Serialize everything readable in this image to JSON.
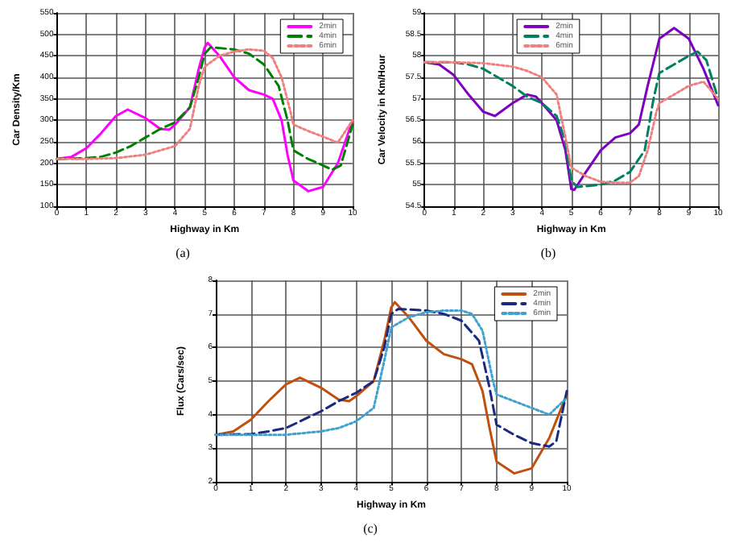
{
  "chart_data": [
    {
      "type": "line",
      "xlabel": "Highway in Km",
      "ylabel": "Car Density/Km",
      "annotations": [
        "(a)"
      ],
      "xlim": [
        0,
        10
      ],
      "xticks": [
        0,
        1,
        2,
        3,
        4,
        5,
        6,
        7,
        8,
        9,
        10
      ],
      "ylim": [
        100,
        550
      ],
      "yticks": [
        100,
        150,
        200,
        250,
        300,
        350,
        400,
        450,
        500,
        550
      ],
      "grid": true,
      "legend": "top right",
      "series": [
        {
          "name": "2min",
          "color": "#ff00ff",
          "line_style": "solid",
          "x": [
            0,
            0.5,
            1,
            1.5,
            2,
            2.4,
            3,
            3.5,
            3.8,
            4,
            4.5,
            4.8,
            5,
            5.1,
            5.5,
            6,
            6.5,
            7,
            7.3,
            7.6,
            7.8,
            8,
            8.5,
            9,
            9.5,
            10
          ],
          "values": [
            210,
            215,
            235,
            270,
            310,
            325,
            305,
            280,
            278,
            290,
            330,
            420,
            470,
            480,
            450,
            400,
            370,
            360,
            350,
            300,
            220,
            160,
            135,
            145,
            200,
            300
          ]
        },
        {
          "name": "4min",
          "color": "#008000",
          "line_style": "dashed",
          "x": [
            0,
            1,
            1.5,
            2,
            2.5,
            3,
            3.5,
            4,
            4.5,
            4.8,
            5,
            5.2,
            6,
            6.5,
            7,
            7.5,
            7.8,
            8,
            8.5,
            9,
            9.3,
            9.6,
            10
          ],
          "values": [
            210,
            212,
            215,
            225,
            240,
            260,
            280,
            295,
            330,
            400,
            455,
            470,
            465,
            455,
            430,
            380,
            300,
            230,
            210,
            195,
            185,
            195,
            290
          ]
        },
        {
          "name": "6min",
          "color": "#f08080",
          "line_style": "dotted",
          "x": [
            0,
            1,
            2,
            3,
            3.5,
            4,
            4.5,
            4.8,
            5,
            5.5,
            6,
            6.5,
            7,
            7.3,
            7.6,
            7.9,
            8,
            8.5,
            9,
            9.5,
            10
          ],
          "values": [
            210,
            210,
            212,
            220,
            230,
            240,
            280,
            380,
            425,
            450,
            460,
            465,
            462,
            445,
            400,
            320,
            290,
            275,
            262,
            248,
            300
          ]
        }
      ]
    },
    {
      "type": "line",
      "xlabel": "Highway in Km",
      "ylabel": "Car Velocity in Km/Hour",
      "annotations": [
        "(b)"
      ],
      "xlim": [
        0,
        10
      ],
      "xticks": [
        0,
        1,
        2,
        3,
        4,
        5,
        6,
        7,
        8,
        9,
        10
      ],
      "ylim": [
        54.5,
        59
      ],
      "yticks": [
        54.5,
        55,
        55.5,
        56,
        56.5,
        57,
        57.5,
        58,
        58.5,
        59
      ],
      "grid": true,
      "legend": "top",
      "series": [
        {
          "name": "2min",
          "color": "#8000c0",
          "line_style": "solid",
          "x": [
            0,
            0.5,
            1,
            1.5,
            2,
            2.4,
            3,
            3.5,
            3.8,
            4,
            4.5,
            4.8,
            5,
            5.1,
            5.5,
            6,
            6.5,
            7,
            7.3,
            7.6,
            8,
            8.5,
            9,
            9.5,
            10
          ],
          "values": [
            57.85,
            57.8,
            57.55,
            57.1,
            56.7,
            56.6,
            56.9,
            57.1,
            57.05,
            56.9,
            56.5,
            55.8,
            54.9,
            54.88,
            55.3,
            55.8,
            56.1,
            56.2,
            56.4,
            57.3,
            58.4,
            58.65,
            58.4,
            57.7,
            56.85
          ]
        },
        {
          "name": "4min",
          "color": "#008060",
          "line_style": "dashed",
          "x": [
            0,
            1,
            1.5,
            2,
            2.5,
            3,
            3.5,
            4,
            4.5,
            4.8,
            5,
            5.2,
            6,
            6.5,
            7,
            7.5,
            7.8,
            8,
            8.5,
            9,
            9.3,
            9.6,
            10
          ],
          "values": [
            57.85,
            57.85,
            57.8,
            57.7,
            57.5,
            57.3,
            57.05,
            56.9,
            56.6,
            56,
            55.1,
            54.95,
            55,
            55.1,
            55.3,
            55.8,
            57,
            57.6,
            57.8,
            58,
            58.1,
            57.9,
            57
          ]
        },
        {
          "name": "6min",
          "color": "#f08080",
          "line_style": "dotted",
          "x": [
            0,
            1,
            2,
            3,
            3.5,
            4,
            4.5,
            4.8,
            5,
            5.5,
            6,
            6.5,
            7,
            7.3,
            7.6,
            7.9,
            8,
            8.5,
            9,
            9.5,
            10
          ],
          "values": [
            57.85,
            57.85,
            57.83,
            57.75,
            57.65,
            57.5,
            57.1,
            56.1,
            55.4,
            55.2,
            55.07,
            55.05,
            55.05,
            55.2,
            55.8,
            56.7,
            56.9,
            57.1,
            57.3,
            57.4,
            57
          ]
        }
      ]
    },
    {
      "type": "line",
      "xlabel": "Highway in Km",
      "ylabel": "Flux (Cars/sec)",
      "annotations": [
        "(c)"
      ],
      "xlim": [
        0,
        10
      ],
      "xticks": [
        0,
        1,
        2,
        3,
        4,
        5,
        6,
        7,
        8,
        9,
        10
      ],
      "ylim": [
        2,
        8
      ],
      "yticks": [
        2,
        3,
        4,
        5,
        6,
        7,
        8
      ],
      "grid": true,
      "legend": "top right",
      "series": [
        {
          "name": "2min",
          "color": "#c05010",
          "line_style": "solid",
          "x": [
            0,
            0.5,
            1,
            1.5,
            2,
            2.4,
            3,
            3.5,
            3.8,
            4,
            4.5,
            4.8,
            5,
            5.1,
            5.5,
            6,
            6.5,
            7,
            7.3,
            7.6,
            7.8,
            8,
            8.5,
            9,
            9.5,
            10
          ],
          "values": [
            3.4,
            3.5,
            3.85,
            4.4,
            4.9,
            5.1,
            4.8,
            4.45,
            4.4,
            4.55,
            5,
            6.2,
            7.2,
            7.35,
            6.9,
            6.2,
            5.8,
            5.65,
            5.5,
            4.7,
            3.6,
            2.6,
            2.25,
            2.4,
            3.3,
            4.6
          ]
        },
        {
          "name": "4min",
          "color": "#1a2a80",
          "line_style": "dashed",
          "x": [
            0,
            1,
            1.5,
            2,
            2.5,
            3,
            3.5,
            4,
            4.5,
            4.8,
            5,
            5.2,
            6,
            6.5,
            7,
            7.5,
            7.8,
            8,
            8.5,
            9,
            9.5,
            9.7,
            10
          ],
          "values": [
            3.4,
            3.42,
            3.5,
            3.6,
            3.85,
            4.1,
            4.4,
            4.65,
            5,
            6,
            7,
            7.15,
            7.1,
            7,
            6.8,
            6.2,
            4.8,
            3.7,
            3.4,
            3.15,
            3.05,
            3.2,
            4.7
          ]
        },
        {
          "name": "6min",
          "color": "#40a0d0",
          "line_style": "dotted",
          "x": [
            0,
            1,
            2,
            3,
            3.5,
            4,
            4.5,
            4.8,
            5,
            5.5,
            6,
            6.5,
            7,
            7.3,
            7.6,
            7.9,
            8,
            8.5,
            9,
            9.5,
            10
          ],
          "values": [
            3.4,
            3.4,
            3.4,
            3.5,
            3.6,
            3.8,
            4.2,
            5.6,
            6.6,
            6.9,
            7.05,
            7.1,
            7.1,
            7,
            6.5,
            5,
            4.6,
            4.4,
            4.2,
            4,
            4.5
          ]
        }
      ]
    }
  ]
}
